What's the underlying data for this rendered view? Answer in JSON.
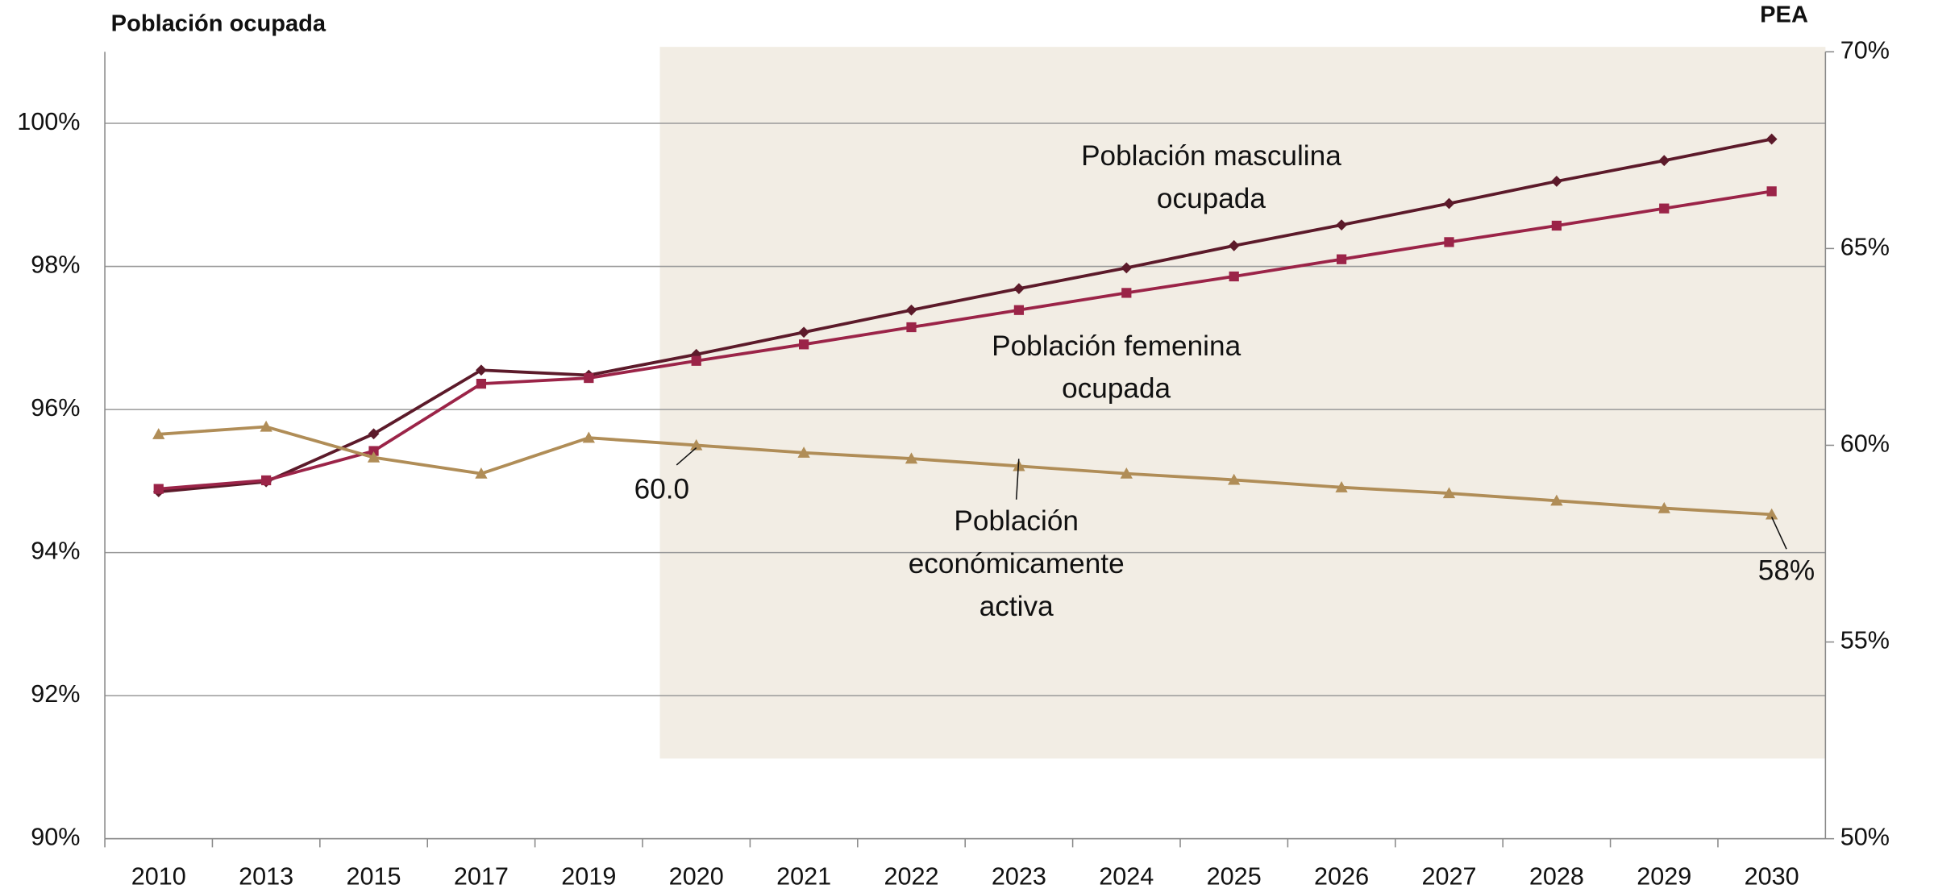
{
  "chart_data": {
    "type": "line",
    "y_axis_title": "Población ocupada",
    "y2_axis_title": "PEA",
    "categories": [
      "2010",
      "2013",
      "2015",
      "2017",
      "2019",
      "2020",
      "2021",
      "2022",
      "2023",
      "2024",
      "2025",
      "2026",
      "2027",
      "2028",
      "2029",
      "2030"
    ],
    "ylim": [
      90,
      101
    ],
    "yticks": [
      {
        "value": 90,
        "label": "90%"
      },
      {
        "value": 92,
        "label": "92%"
      },
      {
        "value": 94,
        "label": "94%"
      },
      {
        "value": 96,
        "label": "96%"
      },
      {
        "value": 98,
        "label": "98%"
      },
      {
        "value": 100,
        "label": "100%"
      }
    ],
    "y2lim": [
      50,
      70
    ],
    "y2ticks": [
      {
        "value": 50,
        "label": "50%"
      },
      {
        "value": 55,
        "label": "55%"
      },
      {
        "value": 60,
        "label": "60%"
      },
      {
        "value": 65,
        "label": "65%"
      },
      {
        "value": 70,
        "label": "70%"
      }
    ],
    "grid": true,
    "series": [
      {
        "label": [
          "Población masculina",
          "ocupada"
        ],
        "color": "#5c1a2a",
        "marker": "diamond",
        "values": [
          94.85,
          94.99,
          95.66,
          96.55,
          96.48,
          96.77,
          97.08,
          97.39,
          97.69,
          97.98,
          98.29,
          98.58,
          98.88,
          99.19,
          99.48,
          99.78
        ]
      },
      {
        "label": [
          "Población femenina",
          "ocupada"
        ],
        "color": "#9b2448",
        "marker": "square",
        "values": [
          94.89,
          95.01,
          95.42,
          96.36,
          96.44,
          96.68,
          96.91,
          97.15,
          97.39,
          97.63,
          97.86,
          98.1,
          98.34,
          98.57,
          98.81,
          99.05
        ]
      },
      {
        "label": [
          "Población",
          "económicamente",
          "activa"
        ],
        "color": "#b08d57",
        "marker": "triangle",
        "axis": "y2",
        "values": [
          60.28,
          60.47,
          59.69,
          59.28,
          60.19,
          60.0,
          59.81,
          59.66,
          59.47,
          59.28,
          59.12,
          58.93,
          58.78,
          58.59,
          58.4,
          58.24
        ],
        "value_labels": [
          null,
          null,
          null,
          null,
          null,
          "60.0",
          null,
          null,
          null,
          null,
          null,
          null,
          null,
          null,
          null,
          "58%"
        ]
      }
    ]
  }
}
